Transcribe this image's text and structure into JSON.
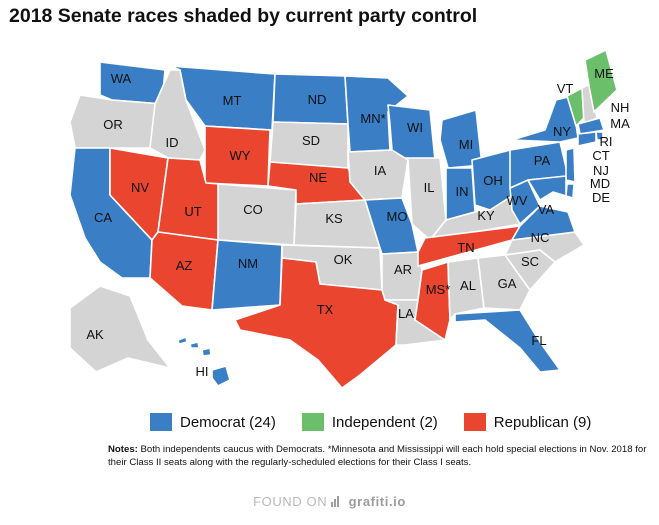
{
  "title": "2018 Senate races shaded by current party control",
  "colors": {
    "democrat": "#3a7fc6",
    "independent": "#6cbf6a",
    "republican": "#e9452f",
    "none": "#d4d4d4",
    "land_stroke": "#ffffff"
  },
  "legend": [
    {
      "key": "democrat",
      "label": "Democrat (24)"
    },
    {
      "key": "independent",
      "label": "Independent (2)"
    },
    {
      "key": "republican",
      "label": "Republican (9)"
    }
  ],
  "notes": {
    "label": "Notes:",
    "text": "Both independents caucus with Democrats. *Minnesota and Mississippi will each hold special elections in Nov. 2018 for their Class II seats along with the regularly-scheduled elections for their Class I seats."
  },
  "footer": {
    "prefix": "FOUND ON",
    "brand": "grafiti.io"
  },
  "states": [
    {
      "abbr": "WA",
      "label": "WA",
      "party": "democrat"
    },
    {
      "abbr": "OR",
      "label": "OR",
      "party": "none"
    },
    {
      "abbr": "CA",
      "label": "CA",
      "party": "democrat"
    },
    {
      "abbr": "NV",
      "label": "NV",
      "party": "republican"
    },
    {
      "abbr": "ID",
      "label": "ID",
      "party": "none"
    },
    {
      "abbr": "MT",
      "label": "MT",
      "party": "democrat"
    },
    {
      "abbr": "WY",
      "label": "WY",
      "party": "republican"
    },
    {
      "abbr": "UT",
      "label": "UT",
      "party": "republican"
    },
    {
      "abbr": "AZ",
      "label": "AZ",
      "party": "republican"
    },
    {
      "abbr": "CO",
      "label": "CO",
      "party": "none"
    },
    {
      "abbr": "NM",
      "label": "NM",
      "party": "democrat"
    },
    {
      "abbr": "ND",
      "label": "ND",
      "party": "democrat"
    },
    {
      "abbr": "SD",
      "label": "SD",
      "party": "none"
    },
    {
      "abbr": "NE",
      "label": "NE",
      "party": "republican"
    },
    {
      "abbr": "KS",
      "label": "KS",
      "party": "none"
    },
    {
      "abbr": "OK",
      "label": "OK",
      "party": "none"
    },
    {
      "abbr": "TX",
      "label": "TX",
      "party": "republican"
    },
    {
      "abbr": "MN",
      "label": "MN*",
      "party": "democrat"
    },
    {
      "abbr": "IA",
      "label": "IA",
      "party": "none"
    },
    {
      "abbr": "MO",
      "label": "MO",
      "party": "democrat"
    },
    {
      "abbr": "AR",
      "label": "AR",
      "party": "none"
    },
    {
      "abbr": "LA",
      "label": "LA",
      "party": "none"
    },
    {
      "abbr": "WI",
      "label": "WI",
      "party": "democrat"
    },
    {
      "abbr": "IL",
      "label": "IL",
      "party": "none"
    },
    {
      "abbr": "MI",
      "label": "MI",
      "party": "democrat"
    },
    {
      "abbr": "IN",
      "label": "IN",
      "party": "democrat"
    },
    {
      "abbr": "OH",
      "label": "OH",
      "party": "democrat"
    },
    {
      "abbr": "KY",
      "label": "KY",
      "party": "none"
    },
    {
      "abbr": "TN",
      "label": "TN",
      "party": "republican"
    },
    {
      "abbr": "MS",
      "label": "MS*",
      "party": "republican"
    },
    {
      "abbr": "AL",
      "label": "AL",
      "party": "none"
    },
    {
      "abbr": "GA",
      "label": "GA",
      "party": "none"
    },
    {
      "abbr": "FL",
      "label": "FL",
      "party": "democrat"
    },
    {
      "abbr": "SC",
      "label": "SC",
      "party": "none"
    },
    {
      "abbr": "NC",
      "label": "NC",
      "party": "none"
    },
    {
      "abbr": "VA",
      "label": "VA",
      "party": "democrat"
    },
    {
      "abbr": "WV",
      "label": "WV",
      "party": "democrat"
    },
    {
      "abbr": "PA",
      "label": "PA",
      "party": "democrat"
    },
    {
      "abbr": "NY",
      "label": "NY",
      "party": "democrat"
    },
    {
      "abbr": "VT",
      "label": "VT",
      "party": "independent"
    },
    {
      "abbr": "NH",
      "label": "NH",
      "party": "none"
    },
    {
      "abbr": "ME",
      "label": "ME",
      "party": "independent"
    },
    {
      "abbr": "MA",
      "label": "MA",
      "party": "democrat"
    },
    {
      "abbr": "RI",
      "label": "RI",
      "party": "democrat"
    },
    {
      "abbr": "CT",
      "label": "CT",
      "party": "democrat"
    },
    {
      "abbr": "NJ",
      "label": "NJ",
      "party": "democrat"
    },
    {
      "abbr": "DE",
      "label": "DE",
      "party": "democrat"
    },
    {
      "abbr": "MD",
      "label": "MD",
      "party": "democrat"
    },
    {
      "abbr": "AK",
      "label": "AK",
      "party": "none"
    },
    {
      "abbr": "HI",
      "label": "HI",
      "party": "democrat"
    }
  ]
}
